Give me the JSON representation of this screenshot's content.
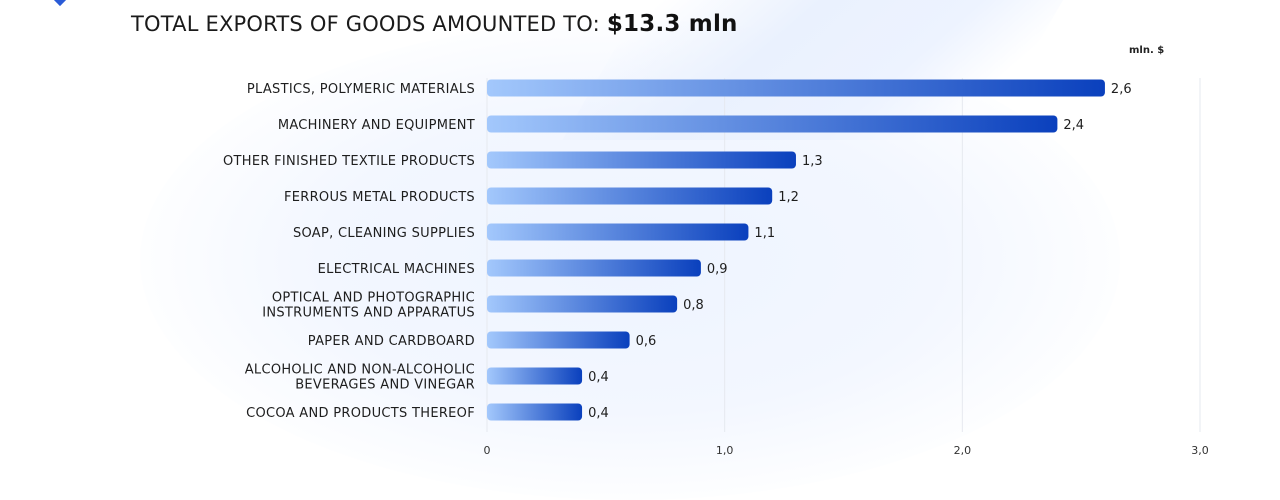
{
  "chart_data": {
    "type": "bar",
    "orientation": "horizontal",
    "title_prefix": "TOTAL EXPORTS OF GOODS AMOUNTED TO:",
    "title_value": "$13.3 mln",
    "unit_label": "mln. $",
    "categories": [
      [
        "PLASTICS, POLYMERIC MATERIALS"
      ],
      [
        "MACHINERY AND EQUIPMENT"
      ],
      [
        "OTHER FINISHED TEXTILE PRODUCTS"
      ],
      [
        "FERROUS METAL PRODUCTS"
      ],
      [
        "SOAP, CLEANING SUPPLIES"
      ],
      [
        "ELECTRICAL MACHINES"
      ],
      [
        "OPTICAL AND PHOTOGRAPHIC",
        "INSTRUMENTS AND APPARATUS"
      ],
      [
        "PAPER AND CARDBOARD"
      ],
      [
        "ALCOHOLIC AND NON-ALCOHOLIC",
        "BEVERAGES AND VINEGAR"
      ],
      [
        "COCOA AND PRODUCTS THEREOF"
      ]
    ],
    "values": [
      2.6,
      2.4,
      1.3,
      1.2,
      1.1,
      0.9,
      0.8,
      0.6,
      0.4,
      0.4
    ],
    "value_labels": [
      "2,6",
      "2,4",
      "1,3",
      "1,2",
      "1,1",
      "0,9",
      "0,8",
      "0,6",
      "0,4",
      "0,4"
    ],
    "xlim": [
      0,
      3
    ],
    "xticks": [
      0,
      1,
      2,
      3
    ],
    "xtick_labels": [
      "0",
      "1,0",
      "2,0",
      "3,0"
    ],
    "grid": true,
    "colors": {
      "bar_start": "#a3c8fc",
      "bar_end": "#0a40bd",
      "grid": "#e6e9ef"
    }
  }
}
